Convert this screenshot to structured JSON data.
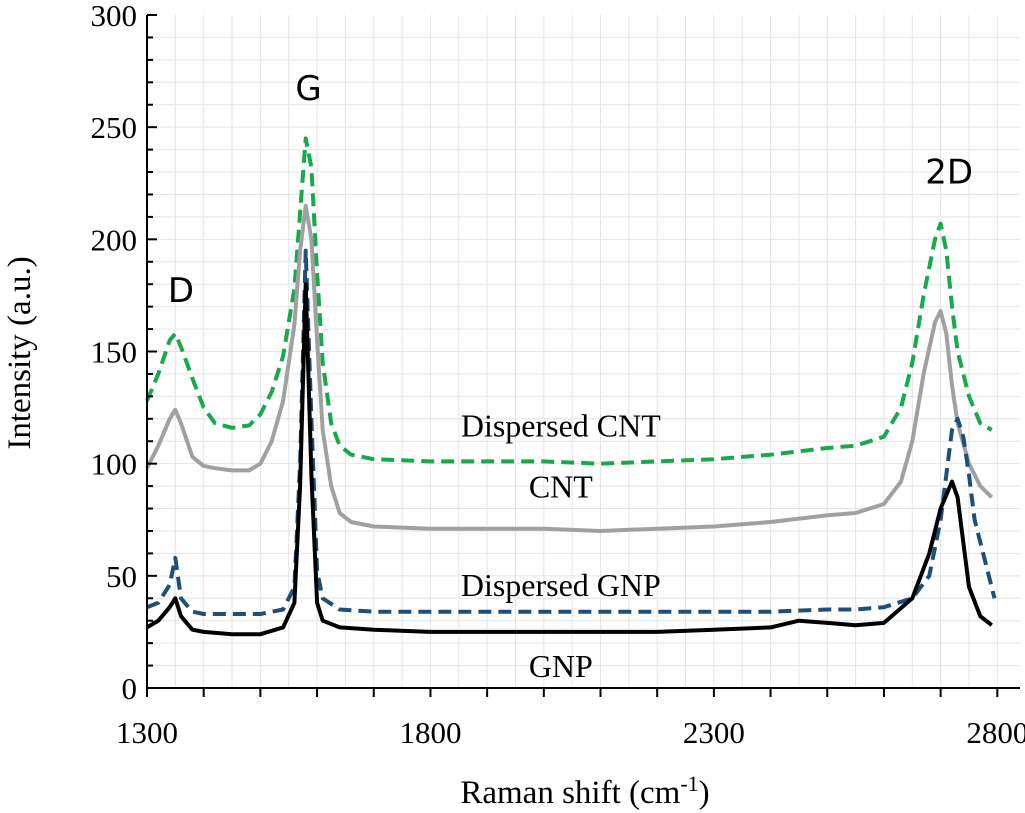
{
  "chart_data": {
    "type": "line",
    "xlabel": "Raman shift (cm",
    "xlabel_sup": "-1",
    "xlabel_end": ")",
    "ylabel": "Intensity (a.u.)",
    "xlim": [
      1300,
      2840
    ],
    "ylim": [
      0,
      300
    ],
    "xticks": [
      1300,
      1800,
      2300,
      2800
    ],
    "yticks": [
      0,
      50,
      100,
      150,
      200,
      250,
      300
    ],
    "grid": true,
    "peak_labels": [
      {
        "text": "D",
        "x": 1360,
        "y": 172
      },
      {
        "text": "G",
        "x": 1585,
        "y": 262
      },
      {
        "text": "2D",
        "x": 2715,
        "y": 225
      }
    ],
    "series": [
      {
        "name": "Dispersed CNT",
        "color": "#1aa84c",
        "dash": true,
        "label_pos": [
          2030,
          112
        ],
        "x": [
          1300,
          1320,
          1340,
          1350,
          1360,
          1380,
          1400,
          1420,
          1450,
          1480,
          1500,
          1520,
          1540,
          1560,
          1570,
          1580,
          1590,
          1600,
          1610,
          1625,
          1640,
          1660,
          1700,
          1800,
          1900,
          2000,
          2100,
          2200,
          2300,
          2400,
          2500,
          2550,
          2600,
          2630,
          2650,
          2670,
          2690,
          2700,
          2710,
          2720,
          2730,
          2750,
          2770,
          2790
        ],
        "y": [
          128,
          140,
          155,
          158,
          152,
          138,
          125,
          118,
          116,
          117,
          122,
          132,
          148,
          178,
          212,
          245,
          232,
          185,
          145,
          118,
          108,
          104,
          102,
          101,
          101,
          101,
          100,
          101,
          102,
          104,
          107,
          108,
          112,
          125,
          145,
          175,
          200,
          207,
          195,
          170,
          150,
          130,
          118,
          115
        ]
      },
      {
        "name": "CNT",
        "color": "#a0a0a0",
        "dash": false,
        "label_pos": [
          2030,
          85
        ],
        "x": [
          1300,
          1320,
          1340,
          1350,
          1360,
          1380,
          1400,
          1420,
          1450,
          1480,
          1500,
          1520,
          1540,
          1560,
          1570,
          1580,
          1590,
          1600,
          1610,
          1625,
          1640,
          1660,
          1700,
          1800,
          1900,
          2000,
          2100,
          2200,
          2300,
          2400,
          2500,
          2550,
          2600,
          2630,
          2650,
          2670,
          2690,
          2700,
          2710,
          2720,
          2730,
          2750,
          2770,
          2790
        ],
        "y": [
          98,
          108,
          120,
          124,
          118,
          103,
          99,
          98,
          97,
          97,
          100,
          110,
          128,
          162,
          195,
          215,
          200,
          155,
          115,
          90,
          78,
          74,
          72,
          71,
          71,
          71,
          70,
          71,
          72,
          74,
          77,
          78,
          82,
          92,
          110,
          140,
          163,
          168,
          158,
          135,
          118,
          100,
          90,
          85
        ]
      },
      {
        "name": "Dispersed GNP",
        "color": "#1f4e79",
        "dash": true,
        "label_pos": [
          2030,
          41
        ],
        "x": [
          1300,
          1320,
          1340,
          1350,
          1360,
          1380,
          1400,
          1450,
          1500,
          1540,
          1560,
          1570,
          1580,
          1590,
          1600,
          1610,
          1640,
          1700,
          1800,
          1900,
          2000,
          2100,
          2200,
          2300,
          2400,
          2500,
          2550,
          2600,
          2650,
          2680,
          2700,
          2720,
          2730,
          2740,
          2750,
          2760,
          2780,
          2795
        ],
        "y": [
          36,
          38,
          46,
          58,
          40,
          34,
          33,
          33,
          33,
          35,
          45,
          100,
          195,
          120,
          52,
          40,
          35,
          34,
          34,
          34,
          34,
          34,
          34,
          34,
          34,
          35,
          35,
          36,
          40,
          50,
          75,
          115,
          120,
          112,
          95,
          75,
          55,
          40
        ]
      },
      {
        "name": "GNP",
        "color": "#000000",
        "dash": false,
        "label_pos": [
          2030,
          5
        ],
        "x": [
          1300,
          1320,
          1340,
          1350,
          1360,
          1380,
          1400,
          1450,
          1500,
          1540,
          1560,
          1570,
          1580,
          1590,
          1600,
          1610,
          1640,
          1700,
          1800,
          1900,
          2000,
          2100,
          2200,
          2300,
          2400,
          2450,
          2500,
          2550,
          2600,
          2650,
          2680,
          2700,
          2720,
          2730,
          2740,
          2750,
          2770,
          2790
        ],
        "y": [
          27,
          30,
          36,
          40,
          32,
          26,
          25,
          24,
          24,
          27,
          38,
          90,
          180,
          95,
          38,
          30,
          27,
          26,
          25,
          25,
          25,
          25,
          25,
          26,
          27,
          30,
          29,
          28,
          29,
          40,
          60,
          80,
          92,
          85,
          65,
          45,
          32,
          28
        ]
      }
    ]
  }
}
